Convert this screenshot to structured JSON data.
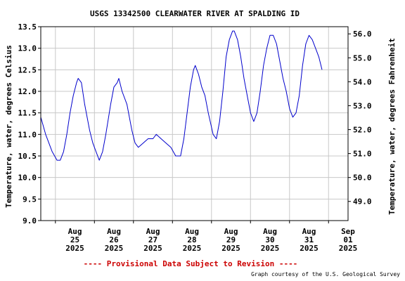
{
  "chart_data": {
    "type": "line",
    "title": "USGS 13342500 CLEARWATER RIVER AT SPALDING ID",
    "ylabel": "Temperature, water, degrees Celsius",
    "ylabel_right": "Temperature, water, degrees Fahrenheit",
    "ylim": [
      9.0,
      13.5
    ],
    "ylim_right": [
      48.2,
      56.3
    ],
    "xlim": [
      "2025-08-24 15:00",
      "2025-09-01 12:00"
    ],
    "yticks": [
      9.0,
      9.5,
      10.0,
      10.5,
      11.0,
      11.5,
      12.0,
      12.5,
      13.0,
      13.5
    ],
    "ytick_labels": [
      "9.0",
      "9.5",
      "10.0",
      "10.5",
      "11.0",
      "11.5",
      "12.0",
      "12.5",
      "13.0",
      "13.5"
    ],
    "yticks_right": [
      49.0,
      50.0,
      51.0,
      52.0,
      53.0,
      54.0,
      55.0,
      56.0
    ],
    "ytick_labels_right": [
      "49.0",
      "50.0",
      "51.0",
      "52.0",
      "53.0",
      "54.0",
      "55.0",
      "56.0"
    ],
    "xticks": [
      {
        "date": "2025-08-25",
        "line1": "Aug",
        "line2": "25",
        "line3": "2025"
      },
      {
        "date": "2025-08-26",
        "line1": "Aug",
        "line2": "26",
        "line3": "2025"
      },
      {
        "date": "2025-08-27",
        "line1": "Aug",
        "line2": "27",
        "line3": "2025"
      },
      {
        "date": "2025-08-28",
        "line1": "Aug",
        "line2": "28",
        "line3": "2025"
      },
      {
        "date": "2025-08-29",
        "line1": "Aug",
        "line2": "29",
        "line3": "2025"
      },
      {
        "date": "2025-08-30",
        "line1": "Aug",
        "line2": "30",
        "line3": "2025"
      },
      {
        "date": "2025-08-31",
        "line1": "Aug",
        "line2": "31",
        "line3": "2025"
      },
      {
        "date": "2025-09-01",
        "line1": "Sep",
        "line2": "01",
        "line3": "2025"
      }
    ],
    "grid": true,
    "series": [
      {
        "color": "#0000cc",
        "points": [
          [
            "2025-08-24 15:00",
            11.4
          ],
          [
            "2025-08-24 18:00",
            11.0
          ],
          [
            "2025-08-24 22:00",
            10.6
          ],
          [
            "2025-08-25 01:00",
            10.4
          ],
          [
            "2025-08-25 03:00",
            10.4
          ],
          [
            "2025-08-25 05:00",
            10.6
          ],
          [
            "2025-08-25 07:00",
            11.0
          ],
          [
            "2025-08-25 09:00",
            11.5
          ],
          [
            "2025-08-25 11:00",
            11.9
          ],
          [
            "2025-08-25 13:00",
            12.2
          ],
          [
            "2025-08-25 14:00",
            12.3
          ],
          [
            "2025-08-25 16:00",
            12.2
          ],
          [
            "2025-08-25 18:00",
            11.7
          ],
          [
            "2025-08-25 21:00",
            11.1
          ],
          [
            "2025-08-25 23:00",
            10.8
          ],
          [
            "2025-08-26 01:00",
            10.6
          ],
          [
            "2025-08-26 03:00",
            10.4
          ],
          [
            "2025-08-26 05:00",
            10.6
          ],
          [
            "2025-08-26 07:00",
            11.0
          ],
          [
            "2025-08-26 10:00",
            11.7
          ],
          [
            "2025-08-26 12:00",
            12.1
          ],
          [
            "2025-08-26 14:00",
            12.2
          ],
          [
            "2025-08-26 15:00",
            12.3
          ],
          [
            "2025-08-26 17:00",
            12.0
          ],
          [
            "2025-08-26 20:00",
            11.7
          ],
          [
            "2025-08-26 23:00",
            11.1
          ],
          [
            "2025-08-27 01:00",
            10.8
          ],
          [
            "2025-08-27 03:00",
            10.7
          ],
          [
            "2025-08-27 06:00",
            10.8
          ],
          [
            "2025-08-27 09:00",
            10.9
          ],
          [
            "2025-08-27 12:00",
            10.9
          ],
          [
            "2025-08-27 14:00",
            11.0
          ],
          [
            "2025-08-27 17:00",
            10.9
          ],
          [
            "2025-08-27 20:00",
            10.8
          ],
          [
            "2025-08-27 23:00",
            10.7
          ],
          [
            "2025-08-28 02:00",
            10.5
          ],
          [
            "2025-08-28 05:00",
            10.5
          ],
          [
            "2025-08-28 07:00",
            10.9
          ],
          [
            "2025-08-28 09:00",
            11.5
          ],
          [
            "2025-08-28 11:00",
            12.1
          ],
          [
            "2025-08-28 13:00",
            12.5
          ],
          [
            "2025-08-28 14:00",
            12.6
          ],
          [
            "2025-08-28 16:00",
            12.4
          ],
          [
            "2025-08-28 18:00",
            12.1
          ],
          [
            "2025-08-28 20:00",
            11.9
          ],
          [
            "2025-08-28 22:00",
            11.5
          ],
          [
            "2025-08-29 01:00",
            11.0
          ],
          [
            "2025-08-29 03:00",
            10.9
          ],
          [
            "2025-08-29 05:00",
            11.3
          ],
          [
            "2025-08-29 07:00",
            12.0
          ],
          [
            "2025-08-29 09:00",
            12.8
          ],
          [
            "2025-08-29 11:00",
            13.2
          ],
          [
            "2025-08-29 13:00",
            13.4
          ],
          [
            "2025-08-29 14:00",
            13.4
          ],
          [
            "2025-08-29 16:00",
            13.2
          ],
          [
            "2025-08-29 18:00",
            12.8
          ],
          [
            "2025-08-29 20:00",
            12.3
          ],
          [
            "2025-08-29 22:00",
            11.9
          ],
          [
            "2025-08-30 00:00",
            11.5
          ],
          [
            "2025-08-30 02:00",
            11.3
          ],
          [
            "2025-08-30 04:00",
            11.5
          ],
          [
            "2025-08-30 06:00",
            12.0
          ],
          [
            "2025-08-30 08:00",
            12.6
          ],
          [
            "2025-08-30 10:00",
            13.0
          ],
          [
            "2025-08-30 12:00",
            13.3
          ],
          [
            "2025-08-30 14:00",
            13.3
          ],
          [
            "2025-08-30 16:00",
            13.1
          ],
          [
            "2025-08-30 18:00",
            12.7
          ],
          [
            "2025-08-30 20:00",
            12.3
          ],
          [
            "2025-08-30 22:00",
            12.0
          ],
          [
            "2025-08-31 00:00",
            11.6
          ],
          [
            "2025-08-31 02:00",
            11.4
          ],
          [
            "2025-08-31 04:00",
            11.5
          ],
          [
            "2025-08-31 06:00",
            11.9
          ],
          [
            "2025-08-31 08:00",
            12.6
          ],
          [
            "2025-08-31 10:00",
            13.1
          ],
          [
            "2025-08-31 12:00",
            13.3
          ],
          [
            "2025-08-31 14:00",
            13.2
          ],
          [
            "2025-08-31 16:00",
            13.0
          ],
          [
            "2025-08-31 18:00",
            12.8
          ],
          [
            "2025-08-31 20:00",
            12.5
          ]
        ]
      }
    ]
  },
  "footer": {
    "provisional": "---- Provisional Data Subject to Revision ----",
    "courtesy": "Graph courtesy of the U.S. Geological Survey"
  },
  "colors": {
    "line": "#0000cc",
    "provisional": "#cc0000",
    "grid": "#c8c8c8",
    "text": "#000000"
  }
}
